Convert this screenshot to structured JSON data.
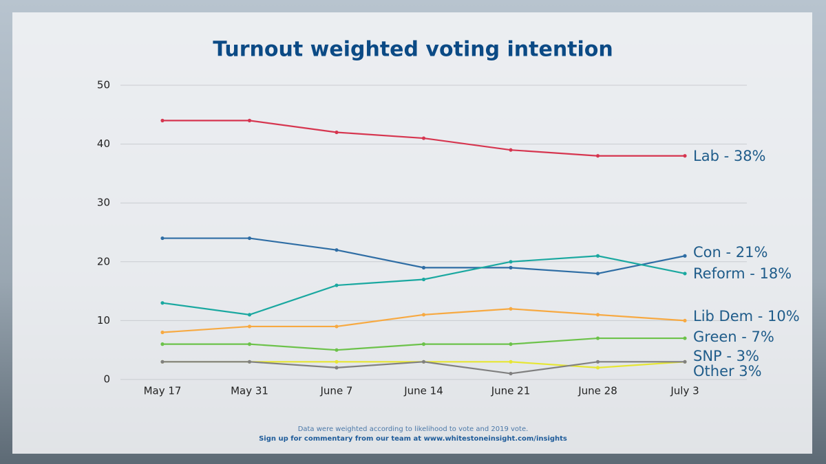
{
  "chart_data": {
    "type": "line",
    "title": "Turnout weighted voting intention",
    "categories": [
      "May 17",
      "May 31",
      "June 7",
      "June 14",
      "June 21",
      "June 28",
      "July 3"
    ],
    "ylim": [
      0,
      50
    ],
    "yticks": [
      0,
      10,
      20,
      30,
      40,
      50
    ],
    "grid": true,
    "series": [
      {
        "name": "Lab - 38%",
        "color": "#d6354f",
        "values": [
          44,
          44,
          42,
          41,
          39,
          38,
          38
        ]
      },
      {
        "name": "Con - 21%",
        "color": "#2e6da4",
        "values": [
          24,
          24,
          22,
          19,
          19,
          18,
          21
        ]
      },
      {
        "name": "Reform - 18%",
        "color": "#1aa8a0",
        "values": [
          13,
          11,
          16,
          17,
          20,
          21,
          18
        ]
      },
      {
        "name": "Lib Dem - 10%",
        "color": "#f7a941",
        "values": [
          8,
          9,
          9,
          11,
          12,
          11,
          10
        ]
      },
      {
        "name": "Green - 7%",
        "color": "#6cc24a",
        "values": [
          6,
          6,
          5,
          6,
          6,
          7,
          7
        ]
      },
      {
        "name": "SNP - 3%",
        "color": "#e6e632",
        "values": [
          3,
          3,
          3,
          3,
          3,
          2,
          3
        ]
      },
      {
        "name": "Other 3%",
        "color": "#808080",
        "values": [
          3,
          3,
          2,
          3,
          1,
          3,
          3
        ]
      }
    ],
    "notes": [
      "Data were weighted according to likelihood to vote and 2019 vote.",
      "Sign up for commentary from our team at www.whitestoneinsight.com/insights"
    ]
  }
}
